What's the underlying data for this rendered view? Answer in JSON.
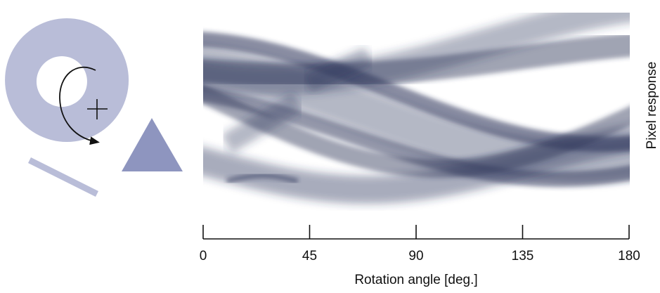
{
  "x_axis": {
    "label": "Rotation angle [deg.]",
    "ticks": [
      "0",
      "45",
      "90",
      "135",
      "180"
    ],
    "range": [
      0,
      180
    ]
  },
  "y_axis_label": "Pixel response",
  "colors": {
    "shape_fill": "#b9bdd8",
    "triangle_fill": "#8e95bf",
    "band_color": "#2a3158",
    "axis": "#111111"
  },
  "icons": {
    "rotation": "curved-arrow-icon",
    "center": "crosshair-icon"
  }
}
